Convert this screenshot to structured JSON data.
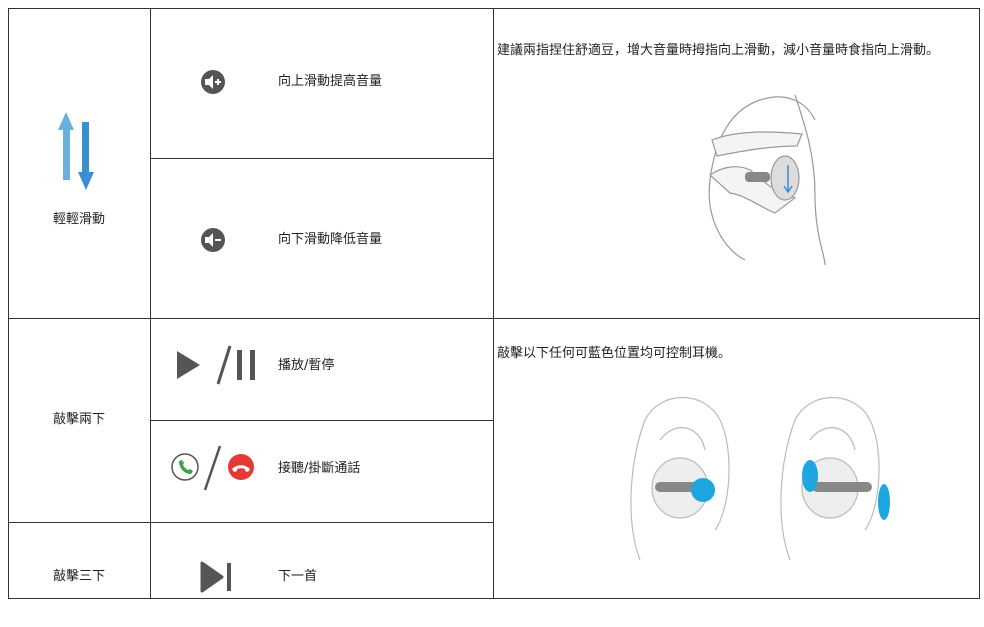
{
  "table": {
    "rows": [
      {
        "gesture": "輕輕滑動",
        "actions": [
          "向上滑動提高音量",
          "向下滑動降低音量"
        ],
        "note": "建議兩指捏住舒適豆，增大音量時拇指向上滑動，減小音量時食指向上滑動。"
      },
      {
        "gesture": "敲擊兩下",
        "actions": [
          "播放/暫停",
          "接聽/掛斷通話"
        ],
        "note": "敲擊以下任何可藍色位置均可控制耳機。"
      },
      {
        "gesture": "敲擊三下",
        "actions": [
          "下一首"
        ]
      }
    ]
  }
}
